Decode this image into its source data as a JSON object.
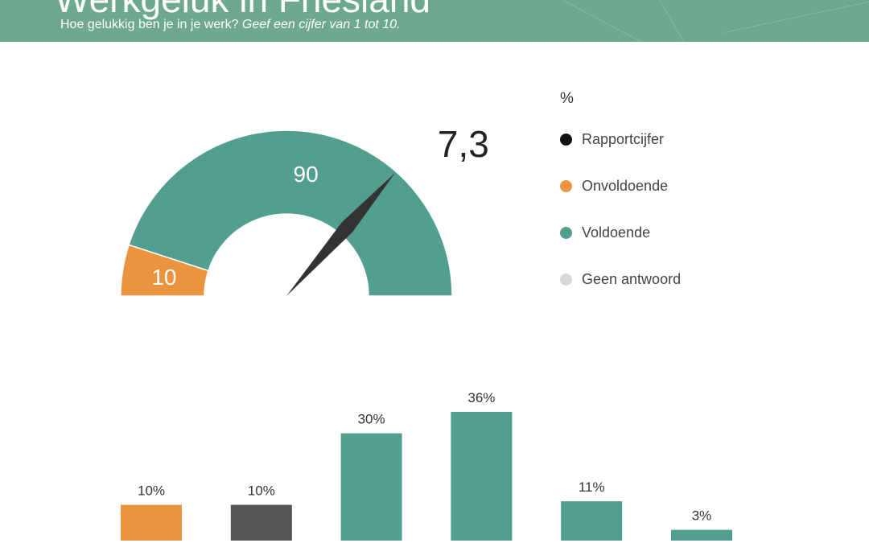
{
  "header": {
    "title": "Werkgeluk in Friesland",
    "subtitle_main": "Hoe gelukkig ben je in je werk?",
    "subtitle_italic": "Geef een cijfer van 1 tot 10."
  },
  "colors": {
    "header_bg": "#6ea88e",
    "orange": "#eb9440",
    "teal": "#529e8f",
    "dark_gray": "#555555",
    "needle": "#333333",
    "light_gray": "#d9d9d9"
  },
  "chart_data": [
    {
      "type": "pie",
      "variant": "gauge",
      "slices": [
        {
          "label": "Onvoldoende",
          "value": 10
        },
        {
          "label": "Voldoende",
          "value": 90
        },
        {
          "label": "Geen antwoord",
          "value": 0
        }
      ],
      "needle": {
        "label": "Rapportcijfer",
        "value": 7.3,
        "display": "7,3",
        "scale": [
          0,
          10
        ]
      },
      "legend": {
        "unit": "%",
        "position": "right",
        "entries": [
          {
            "label": "Rapportcijfer",
            "color": "#111111"
          },
          {
            "label": "Onvoldoende",
            "color": "#eb9440"
          },
          {
            "label": "Voldoende",
            "color": "#529e8f"
          },
          {
            "label": "Geen antwoord",
            "color": "#d9d9d9"
          }
        ]
      }
    },
    {
      "type": "bar",
      "values": [
        10,
        10,
        30,
        36,
        11,
        3
      ],
      "labels": [
        "10%",
        "10%",
        "30%",
        "36%",
        "11%",
        "3%"
      ],
      "colors": [
        "#eb9440",
        "#555555",
        "#529e8f",
        "#529e8f",
        "#529e8f",
        "#529e8f"
      ],
      "ylim": [
        0,
        36
      ]
    }
  ]
}
